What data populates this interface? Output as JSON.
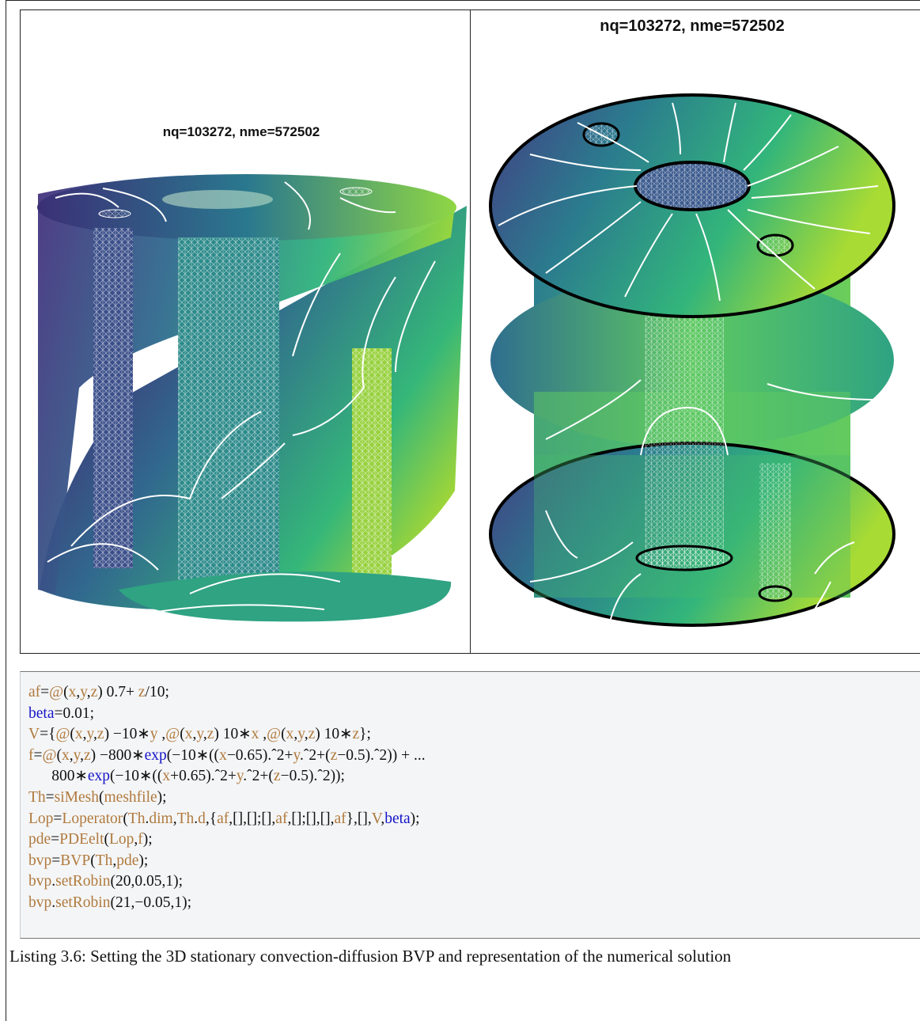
{
  "colors": {
    "viridis": [
      "#440154",
      "#443983",
      "#31688e",
      "#21918c",
      "#35b779",
      "#90d743",
      "#fde725"
    ],
    "contour": "#ffffff",
    "code_background": "#f4f5f6",
    "code_variable": "#b07a3e",
    "code_keyword": "#1515c8"
  },
  "figure": {
    "left_panel": {
      "title": "nq=103272, nme=572502"
    },
    "right_panel": {
      "title": "nq=103272, nme=572502"
    }
  },
  "code": {
    "lines": [
      [
        {
          "t": "af",
          "c": "v"
        },
        {
          "t": "=",
          "c": "p"
        },
        {
          "t": "@",
          "c": "v"
        },
        {
          "t": "(",
          "c": "p"
        },
        {
          "t": "x",
          "c": "v"
        },
        {
          "t": ",",
          "c": "p"
        },
        {
          "t": "y",
          "c": "v"
        },
        {
          "t": ",",
          "c": "p"
        },
        {
          "t": "z",
          "c": "v"
        },
        {
          "t": ") 0.7+ ",
          "c": "p"
        },
        {
          "t": "z",
          "c": "v"
        },
        {
          "t": "/10;",
          "c": "p"
        }
      ],
      [
        {
          "t": "beta",
          "c": "k"
        },
        {
          "t": "=0.01;",
          "c": "p"
        }
      ],
      [
        {
          "t": "V",
          "c": "v"
        },
        {
          "t": "={",
          "c": "p"
        },
        {
          "t": "@",
          "c": "v"
        },
        {
          "t": "(",
          "c": "p"
        },
        {
          "t": "x",
          "c": "v"
        },
        {
          "t": ",",
          "c": "p"
        },
        {
          "t": "y",
          "c": "v"
        },
        {
          "t": ",",
          "c": "p"
        },
        {
          "t": "z",
          "c": "v"
        },
        {
          "t": ") −10∗",
          "c": "p"
        },
        {
          "t": "y",
          "c": "v"
        },
        {
          "t": " ,",
          "c": "p"
        },
        {
          "t": "@",
          "c": "v"
        },
        {
          "t": "(",
          "c": "p"
        },
        {
          "t": "x",
          "c": "v"
        },
        {
          "t": ",",
          "c": "p"
        },
        {
          "t": "y",
          "c": "v"
        },
        {
          "t": ",",
          "c": "p"
        },
        {
          "t": "z",
          "c": "v"
        },
        {
          "t": ") 10∗",
          "c": "p"
        },
        {
          "t": "x",
          "c": "v"
        },
        {
          "t": " ,",
          "c": "p"
        },
        {
          "t": "@",
          "c": "v"
        },
        {
          "t": "(",
          "c": "p"
        },
        {
          "t": "x",
          "c": "v"
        },
        {
          "t": ",",
          "c": "p"
        },
        {
          "t": "y",
          "c": "v"
        },
        {
          "t": ",",
          "c": "p"
        },
        {
          "t": "z",
          "c": "v"
        },
        {
          "t": ") 10∗",
          "c": "p"
        },
        {
          "t": "z",
          "c": "v"
        },
        {
          "t": "};",
          "c": "p"
        }
      ],
      [
        {
          "t": "f",
          "c": "v"
        },
        {
          "t": "=",
          "c": "p"
        },
        {
          "t": "@",
          "c": "v"
        },
        {
          "t": "(",
          "c": "p"
        },
        {
          "t": "x",
          "c": "v"
        },
        {
          "t": ",",
          "c": "p"
        },
        {
          "t": "y",
          "c": "v"
        },
        {
          "t": ",",
          "c": "p"
        },
        {
          "t": "z",
          "c": "v"
        },
        {
          "t": ") −800∗",
          "c": "p"
        },
        {
          "t": "exp",
          "c": "k"
        },
        {
          "t": "(−10∗((",
          "c": "p"
        },
        {
          "t": "x",
          "c": "v"
        },
        {
          "t": "−0.65).ˆ2+",
          "c": "p"
        },
        {
          "t": "y",
          "c": "v"
        },
        {
          "t": ".ˆ2+(",
          "c": "p"
        },
        {
          "t": "z",
          "c": "v"
        },
        {
          "t": "−0.5).ˆ2)) + ...",
          "c": "p"
        }
      ],
      [
        {
          "t": "      800∗",
          "c": "p"
        },
        {
          "t": "exp",
          "c": "k"
        },
        {
          "t": "(−10∗((",
          "c": "p"
        },
        {
          "t": "x",
          "c": "v"
        },
        {
          "t": "+0.65).ˆ2+",
          "c": "p"
        },
        {
          "t": "y",
          "c": "v"
        },
        {
          "t": ".ˆ2+(",
          "c": "p"
        },
        {
          "t": "z",
          "c": "v"
        },
        {
          "t": "−0.5).ˆ2));",
          "c": "p"
        }
      ],
      [
        {
          "t": "Th",
          "c": "v"
        },
        {
          "t": "=",
          "c": "p"
        },
        {
          "t": "siMesh",
          "c": "v"
        },
        {
          "t": "(",
          "c": "p"
        },
        {
          "t": "meshfile",
          "c": "v"
        },
        {
          "t": ");",
          "c": "p"
        }
      ],
      [
        {
          "t": "Lop",
          "c": "v"
        },
        {
          "t": "=",
          "c": "p"
        },
        {
          "t": "Loperator",
          "c": "v"
        },
        {
          "t": "(",
          "c": "p"
        },
        {
          "t": "Th",
          "c": "v"
        },
        {
          "t": ".",
          "c": "p"
        },
        {
          "t": "dim",
          "c": "v"
        },
        {
          "t": ",",
          "c": "p"
        },
        {
          "t": "Th",
          "c": "v"
        },
        {
          "t": ".",
          "c": "p"
        },
        {
          "t": "d",
          "c": "v"
        },
        {
          "t": ",{",
          "c": "p"
        },
        {
          "t": "af",
          "c": "v"
        },
        {
          "t": ",[],[];[],",
          "c": "p"
        },
        {
          "t": "af",
          "c": "v"
        },
        {
          "t": ",[];[],[],",
          "c": "p"
        },
        {
          "t": "af",
          "c": "v"
        },
        {
          "t": "},[],",
          "c": "p"
        },
        {
          "t": "V",
          "c": "v"
        },
        {
          "t": ",",
          "c": "p"
        },
        {
          "t": "beta",
          "c": "k"
        },
        {
          "t": ");",
          "c": "p"
        }
      ],
      [
        {
          "t": "pde",
          "c": "v"
        },
        {
          "t": "=",
          "c": "p"
        },
        {
          "t": "PDEelt",
          "c": "v"
        },
        {
          "t": "(",
          "c": "p"
        },
        {
          "t": "Lop",
          "c": "v"
        },
        {
          "t": ",",
          "c": "p"
        },
        {
          "t": "f",
          "c": "v"
        },
        {
          "t": ");",
          "c": "p"
        }
      ],
      [
        {
          "t": "bvp",
          "c": "v"
        },
        {
          "t": "=",
          "c": "p"
        },
        {
          "t": "BVP",
          "c": "v"
        },
        {
          "t": "(",
          "c": "p"
        },
        {
          "t": "Th",
          "c": "v"
        },
        {
          "t": ",",
          "c": "p"
        },
        {
          "t": "pde",
          "c": "v"
        },
        {
          "t": ");",
          "c": "p"
        }
      ],
      [
        {
          "t": "bvp",
          "c": "v"
        },
        {
          "t": ".",
          "c": "p"
        },
        {
          "t": "setRobin",
          "c": "v"
        },
        {
          "t": "(20,0.05,1);",
          "c": "p"
        }
      ],
      [
        {
          "t": "bvp",
          "c": "v"
        },
        {
          "t": ".",
          "c": "p"
        },
        {
          "t": "setRobin",
          "c": "v"
        },
        {
          "t": "(21,−0.05,1);",
          "c": "p"
        }
      ]
    ]
  },
  "caption": "Listing 3.6: Setting the 3D stationary convection-diffusion BVP and representation of the numerical solution"
}
